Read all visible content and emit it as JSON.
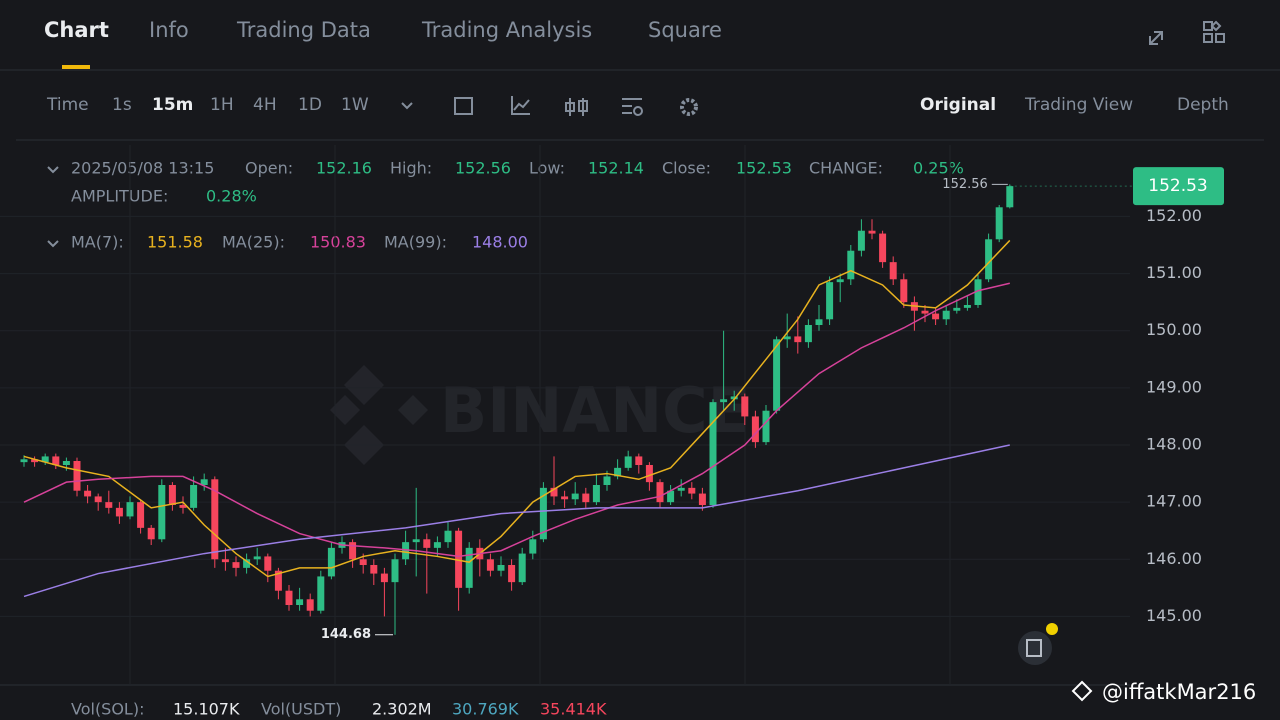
{
  "tabs": [
    "Chart",
    "Info",
    "Trading Data",
    "Trading Analysis",
    "Square"
  ],
  "intervals": [
    "Time",
    "1s",
    "15m",
    "1H",
    "4H",
    "1D",
    "1W"
  ],
  "views": [
    "Original",
    "Trading View",
    "Depth"
  ],
  "ohlc_header": {
    "date": "2025/05/08 13:15",
    "open": "Open:",
    "high": "High:",
    "low": "Low:",
    "close": "Close:",
    "change": "CHANGE:",
    "change_value": "0.25%",
    "amplitude": "AMPLITUDE:",
    "amplitude_value": "0.28%"
  },
  "ma_header": {
    "ma7": "MA(7):",
    "ma25": "MA(25):",
    "ma99": "MA(99):",
    "ma99_value": "148.00"
  },
  "volume_header": {
    "sol": "Vol(SOL):",
    "sol_value": "15.107K",
    "usdt": "Vol(USDT)",
    "usdt_value": "2.302M",
    "ma5": "30.769K",
    "ma10": "35.414K"
  },
  "watermark": "BINANCE",
  "credit": "@iffatkMar216",
  "chart_data": {
    "type": "candlestick",
    "open": [
      147.7,
      147.75,
      147.7,
      147.8,
      147.65,
      147.72,
      147.2,
      147.1,
      147.0,
      146.9,
      146.75,
      147.0,
      146.55,
      146.35,
      147.3,
      146.95,
      146.9,
      147.3,
      147.4,
      146.0,
      145.95,
      145.85,
      146.0,
      146.05,
      145.8,
      145.45,
      145.2,
      145.3,
      145.1,
      145.7,
      146.2,
      146.3,
      146.0,
      145.9,
      145.75,
      145.6,
      146.0,
      146.3,
      146.35,
      146.2,
      146.3,
      146.5,
      145.5,
      146.2,
      146.0,
      145.8,
      145.9,
      145.6,
      146.1,
      146.35,
      147.25,
      147.1,
      147.05,
      147.15,
      147.0,
      147.3,
      147.45,
      147.6,
      147.8,
      147.65,
      147.35,
      147.0,
      147.2,
      147.25,
      147.15,
      146.95,
      148.75,
      148.8,
      148.85,
      148.5,
      148.05,
      148.6,
      149.85,
      149.9,
      149.8,
      150.1,
      150.2,
      150.85,
      150.9,
      151.4,
      151.75,
      151.7,
      151.2,
      150.9,
      150.5,
      150.35,
      150.3,
      150.2,
      150.35,
      150.4,
      150.45,
      150.9,
      151.6,
      152.16
    ],
    "high": [
      147.82,
      147.8,
      147.85,
      147.85,
      147.78,
      147.78,
      147.3,
      147.15,
      147.2,
      147.0,
      147.1,
      147.05,
      146.6,
      147.4,
      147.35,
      147.1,
      147.45,
      147.5,
      147.45,
      146.2,
      146.05,
      146.1,
      146.2,
      146.1,
      145.85,
      145.55,
      145.5,
      145.4,
      145.8,
      146.3,
      146.4,
      146.35,
      146.1,
      146.0,
      145.85,
      146.1,
      146.5,
      147.25,
      146.45,
      146.4,
      146.65,
      146.55,
      146.3,
      146.35,
      146.1,
      146.05,
      146.0,
      146.2,
      146.5,
      147.35,
      147.8,
      147.2,
      147.35,
      147.25,
      147.5,
      147.55,
      147.75,
      147.9,
      147.85,
      147.7,
      147.4,
      147.3,
      147.4,
      147.35,
      147.25,
      148.8,
      150.0,
      148.95,
      148.9,
      148.6,
      148.7,
      149.9,
      150.3,
      150.25,
      150.2,
      150.45,
      150.95,
      151.0,
      151.5,
      151.95,
      151.95,
      151.75,
      151.3,
      151.0,
      150.6,
      150.45,
      150.4,
      150.45,
      150.55,
      150.6,
      151.0,
      151.7,
      152.2,
      152.56
    ],
    "low": [
      147.62,
      147.62,
      147.65,
      147.58,
      147.55,
      147.1,
      146.98,
      146.85,
      146.8,
      146.62,
      146.7,
      146.45,
      146.25,
      146.3,
      146.85,
      146.8,
      146.85,
      147.2,
      145.85,
      145.8,
      145.7,
      145.75,
      145.9,
      145.6,
      145.3,
      145.1,
      145.1,
      145.0,
      145.05,
      145.65,
      146.1,
      145.85,
      145.75,
      145.55,
      145.0,
      144.68,
      145.9,
      145.7,
      145.4,
      146.05,
      146.2,
      145.1,
      145.4,
      145.7,
      145.7,
      145.7,
      145.45,
      145.55,
      146.0,
      146.3,
      146.95,
      146.9,
      146.95,
      146.9,
      146.95,
      147.2,
      147.4,
      147.55,
      147.5,
      147.2,
      146.9,
      146.95,
      147.1,
      147.05,
      146.85,
      146.9,
      148.6,
      148.6,
      148.35,
      147.95,
      148.0,
      148.55,
      149.7,
      149.6,
      149.7,
      150.0,
      150.1,
      150.5,
      150.8,
      151.3,
      151.6,
      151.1,
      150.8,
      150.4,
      150.0,
      150.15,
      150.1,
      150.1,
      150.3,
      150.35,
      150.4,
      150.85,
      151.55,
      152.14
    ],
    "close": [
      147.75,
      147.7,
      147.8,
      147.65,
      147.72,
      147.2,
      147.1,
      147.0,
      146.9,
      146.75,
      147.0,
      146.55,
      146.35,
      147.3,
      146.95,
      146.9,
      147.3,
      147.4,
      146.0,
      145.95,
      145.85,
      146.0,
      146.05,
      145.8,
      145.45,
      145.2,
      145.3,
      145.1,
      145.7,
      146.2,
      146.3,
      146.0,
      145.9,
      145.75,
      145.6,
      146.0,
      146.3,
      146.35,
      146.2,
      146.3,
      146.5,
      145.5,
      146.2,
      146.0,
      145.8,
      145.9,
      145.6,
      146.1,
      146.35,
      147.25,
      147.1,
      147.05,
      147.15,
      147.0,
      147.3,
      147.45,
      147.6,
      147.8,
      147.65,
      147.35,
      147.0,
      147.2,
      147.25,
      147.15,
      146.95,
      148.75,
      148.8,
      148.85,
      148.5,
      148.05,
      148.6,
      149.85,
      149.9,
      149.8,
      150.1,
      150.2,
      150.85,
      150.9,
      151.4,
      151.75,
      151.7,
      151.2,
      150.9,
      150.5,
      150.35,
      150.3,
      150.2,
      150.35,
      150.4,
      150.45,
      150.9,
      151.6,
      152.16,
      152.53
    ],
    "colors": {
      "up": "#2ebd85",
      "down": "#f6465d"
    },
    "ylim": [
      143.8,
      153.25
    ],
    "yticks": [
      {
        "value": 145,
        "label": "145.00"
      },
      {
        "value": 146,
        "label": "146.00"
      },
      {
        "value": 147,
        "label": "147.00"
      },
      {
        "value": 148,
        "label": "148.00"
      },
      {
        "value": 149,
        "label": "149.00"
      },
      {
        "value": 150,
        "label": "150.00"
      },
      {
        "value": 151,
        "label": "151.00"
      },
      {
        "value": 152,
        "label": "152.00"
      }
    ],
    "grid": true,
    "ma": [
      {
        "color": "#e8b21f",
        "x": [
          0,
          4,
          8,
          12,
          15,
          17,
          20,
          23,
          26,
          29,
          32,
          35,
          39,
          42,
          45,
          48,
          52,
          55,
          58,
          61,
          64,
          67,
          70,
          73,
          75,
          78,
          81,
          83,
          86,
          89,
          93
        ],
        "values": [
          147.8,
          147.6,
          147.45,
          146.9,
          147.0,
          146.6,
          146.1,
          145.7,
          145.85,
          145.85,
          146.05,
          146.15,
          146.05,
          145.95,
          146.4,
          147.0,
          147.45,
          147.5,
          147.4,
          147.6,
          148.2,
          148.8,
          149.5,
          150.2,
          150.8,
          151.05,
          150.8,
          150.45,
          150.4,
          150.8,
          151.58
        ]
      },
      {
        "color": "#d6429a",
        "x": [
          0,
          4,
          7,
          12,
          15,
          18,
          22,
          26,
          30,
          34,
          37,
          41,
          45,
          48,
          52,
          56,
          60,
          64,
          68,
          71,
          75,
          79,
          83,
          86,
          90,
          93
        ],
        "values": [
          147.0,
          147.35,
          147.4,
          147.45,
          147.45,
          147.2,
          146.8,
          146.45,
          146.25,
          146.2,
          146.15,
          146.05,
          146.15,
          146.4,
          146.7,
          146.95,
          147.1,
          147.5,
          148.0,
          148.6,
          149.25,
          149.7,
          150.05,
          150.35,
          150.7,
          150.83
        ]
      },
      {
        "color": "#9b7fe6",
        "x": [
          0,
          7,
          17,
          26,
          36,
          45,
          54,
          64,
          73,
          83,
          93
        ],
        "values": [
          145.35,
          145.75,
          146.1,
          146.35,
          146.55,
          146.8,
          146.9,
          146.9,
          147.2,
          147.6,
          148.0
        ]
      }
    ]
  }
}
